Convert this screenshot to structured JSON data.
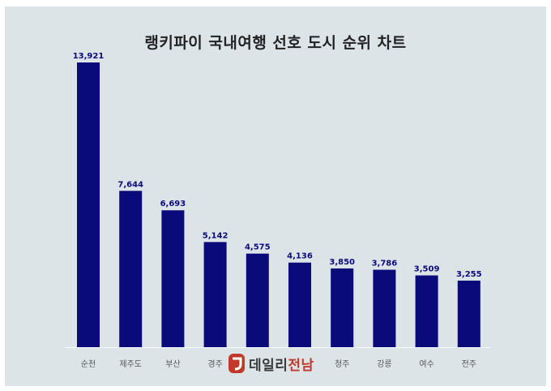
{
  "title": "랭키파이 국내여행 선호 도시 순위 차트",
  "watermark": {
    "name": "데일리",
    "accent": "전남",
    "brand_color": "#c0392b"
  },
  "colors": {
    "bar": "#0a0a7a",
    "background": "#dde4e8",
    "label": "#0a0a7a",
    "category": "#555555"
  },
  "chart_data": {
    "type": "bar",
    "title": "랭키파이 국내여행 선호 도시 순위 차트",
    "xlabel": "",
    "ylabel": "",
    "categories": [
      "순천",
      "제주도",
      "부산",
      "경주",
      "",
      "",
      "청주",
      "강릉",
      "여수",
      "전주"
    ],
    "values": [
      13921,
      7644,
      6693,
      5142,
      4575,
      4136,
      3850,
      3786,
      3509,
      3255
    ],
    "value_labels": [
      "13,921",
      "7,644",
      "6,693",
      "5,142",
      "4,575",
      "4,136",
      "3,850",
      "3,786",
      "3,509",
      "3,255"
    ],
    "ylim": [
      0,
      13921
    ],
    "grid": false,
    "legend": "none"
  }
}
